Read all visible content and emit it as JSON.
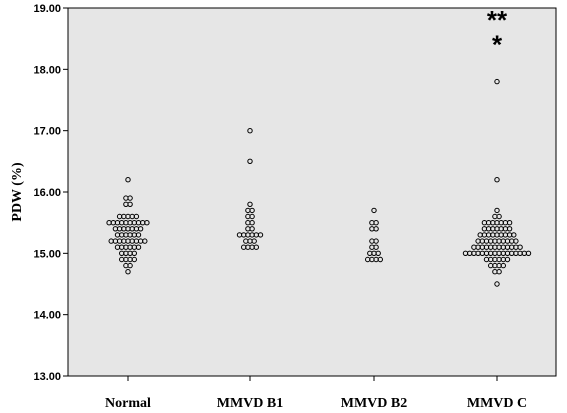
{
  "chart_data": {
    "type": "scatter",
    "title": "",
    "xlabel": "",
    "ylabel": "PDW (%)",
    "ylim": [
      13.0,
      19.0
    ],
    "yticks": [
      "13.00",
      "14.00",
      "15.00",
      "16.00",
      "17.00",
      "18.00",
      "19.00"
    ],
    "categories": [
      "Normal",
      "MMVD B1",
      "MMVD B2",
      "MMVD C"
    ],
    "grid": false,
    "background": "#e6e6e6",
    "marker_color": "#000000",
    "series": [
      {
        "category": "Normal",
        "points": [
          {
            "y": 14.7,
            "n": 1
          },
          {
            "y": 14.8,
            "n": 2
          },
          {
            "y": 14.9,
            "n": 4
          },
          {
            "y": 15.0,
            "n": 4
          },
          {
            "y": 15.1,
            "n": 6
          },
          {
            "y": 15.2,
            "n": 9
          },
          {
            "y": 15.3,
            "n": 6
          },
          {
            "y": 15.4,
            "n": 7
          },
          {
            "y": 15.5,
            "n": 10
          },
          {
            "y": 15.6,
            "n": 5
          },
          {
            "y": 15.8,
            "n": 2
          },
          {
            "y": 15.9,
            "n": 2
          },
          {
            "y": 16.2,
            "n": 1
          }
        ]
      },
      {
        "category": "MMVD B1",
        "points": [
          {
            "y": 15.1,
            "n": 4
          },
          {
            "y": 15.2,
            "n": 3
          },
          {
            "y": 15.3,
            "n": 6
          },
          {
            "y": 15.4,
            "n": 2
          },
          {
            "y": 15.5,
            "n": 2
          },
          {
            "y": 15.6,
            "n": 2
          },
          {
            "y": 15.7,
            "n": 2
          },
          {
            "y": 15.8,
            "n": 1
          },
          {
            "y": 16.5,
            "n": 1
          },
          {
            "y": 17.0,
            "n": 1
          }
        ]
      },
      {
        "category": "MMVD B2",
        "points": [
          {
            "y": 14.9,
            "n": 4
          },
          {
            "y": 15.0,
            "n": 3
          },
          {
            "y": 15.1,
            "n": 2
          },
          {
            "y": 15.2,
            "n": 2
          },
          {
            "y": 15.4,
            "n": 2
          },
          {
            "y": 15.5,
            "n": 2
          },
          {
            "y": 15.7,
            "n": 1
          }
        ]
      },
      {
        "category": "MMVD C",
        "points": [
          {
            "y": 14.5,
            "n": 1
          },
          {
            "y": 14.7,
            "n": 2
          },
          {
            "y": 14.8,
            "n": 4
          },
          {
            "y": 14.9,
            "n": 6
          },
          {
            "y": 15.0,
            "n": 16
          },
          {
            "y": 15.1,
            "n": 12
          },
          {
            "y": 15.2,
            "n": 10
          },
          {
            "y": 15.3,
            "n": 9
          },
          {
            "y": 15.4,
            "n": 7
          },
          {
            "y": 15.5,
            "n": 7
          },
          {
            "y": 15.6,
            "n": 2
          },
          {
            "y": 15.7,
            "n": 1
          },
          {
            "y": 16.2,
            "n": 1
          },
          {
            "y": 17.8,
            "n": 1
          }
        ],
        "extreme_markers": [
          {
            "text": "*",
            "y": 18.45
          },
          {
            "text": "**",
            "y": 18.85
          }
        ]
      }
    ]
  }
}
